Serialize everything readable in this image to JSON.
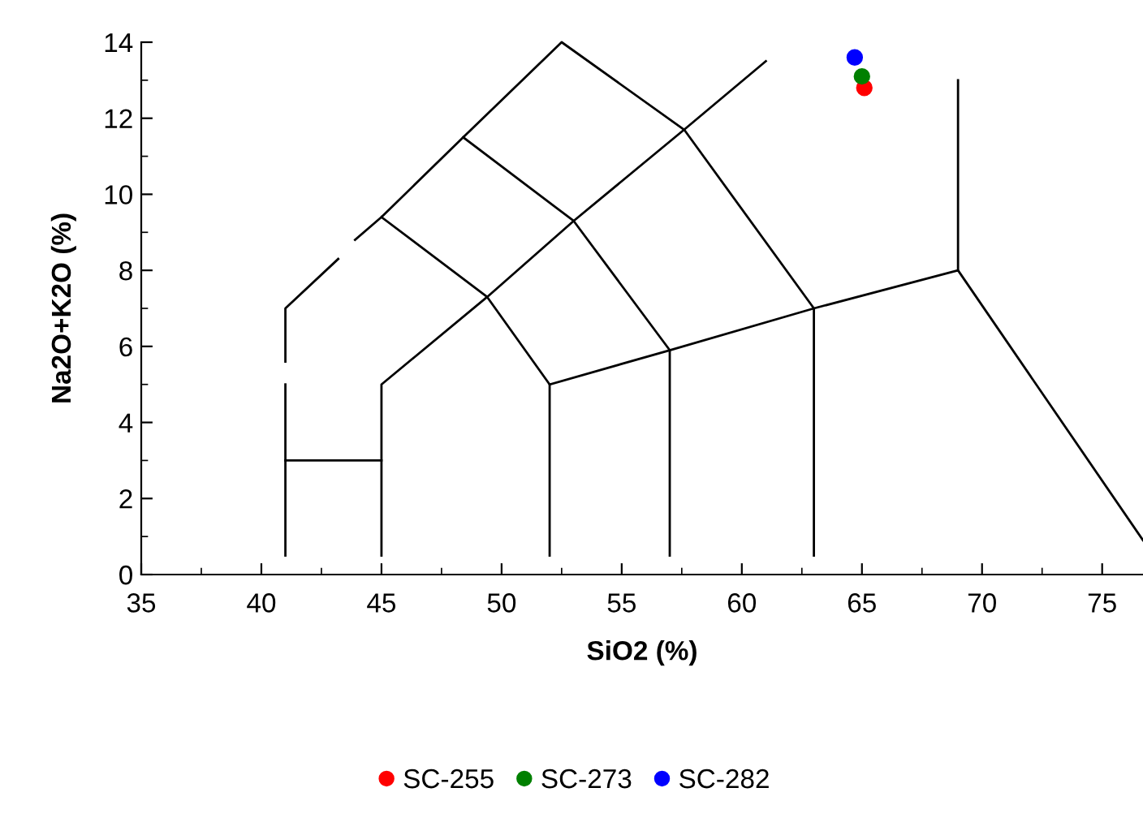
{
  "chart_data": {
    "type": "scatter",
    "xlabel": "SiO2 (%)",
    "ylabel": "Na2O+K2O (%)",
    "xlim": [
      35,
      76.7
    ],
    "ylim": [
      0,
      14
    ],
    "xticks": [
      35,
      40,
      45,
      50,
      55,
      60,
      65,
      70,
      75
    ],
    "yticks": [
      0,
      2,
      4,
      6,
      8,
      10,
      12,
      14
    ],
    "grid": false,
    "legend": "bottom",
    "series": [
      {
        "type": "line",
        "color": "#000000",
        "x": [
          41,
          41
        ],
        "values": [
          0.5,
          5.0
        ]
      },
      {
        "type": "line",
        "color": "#000000",
        "x": [
          41,
          41,
          43.2
        ],
        "values": [
          5.6,
          7.0,
          8.3
        ]
      },
      {
        "type": "line",
        "color": "#000000",
        "x": [
          43.9,
          45,
          48.4,
          52.5,
          57.6,
          63,
          63
        ],
        "values": [
          8.8,
          9.4,
          11.5,
          14,
          11.7,
          7.0,
          0.5
        ]
      },
      {
        "type": "line",
        "color": "#000000",
        "x": [
          41,
          45
        ],
        "values": [
          3,
          3
        ]
      },
      {
        "type": "line",
        "color": "#000000",
        "x": [
          45,
          45,
          49.4,
          53,
          57.6,
          61
        ],
        "values": [
          0.5,
          5,
          7.3,
          9.3,
          11.7,
          13.5
        ]
      },
      {
        "type": "line",
        "color": "#000000",
        "x": [
          45,
          49.4,
          52,
          52
        ],
        "values": [
          9.4,
          7.3,
          5,
          0.5
        ]
      },
      {
        "type": "line",
        "color": "#000000",
        "x": [
          48.4,
          53,
          57,
          57
        ],
        "values": [
          11.5,
          9.3,
          5.9,
          0.5
        ]
      },
      {
        "type": "line",
        "color": "#000000",
        "x": [
          52,
          57,
          63,
          69,
          76.7
        ],
        "values": [
          5,
          5.9,
          7.0,
          8,
          0.9
        ]
      },
      {
        "type": "line",
        "color": "#000000",
        "x": [
          69,
          69
        ],
        "values": [
          8,
          13
        ]
      },
      {
        "name": "SC-255",
        "marker": "circle",
        "color": "#ff0000",
        "x": [
          65.1
        ],
        "values": [
          12.8
        ]
      },
      {
        "name": "SC-273",
        "marker": "circle",
        "color": "#008000",
        "x": [
          65.0
        ],
        "values": [
          13.1
        ]
      },
      {
        "name": "SC-282",
        "marker": "circle",
        "color": "#0000ff",
        "x": [
          64.7
        ],
        "values": [
          13.6
        ]
      }
    ]
  }
}
